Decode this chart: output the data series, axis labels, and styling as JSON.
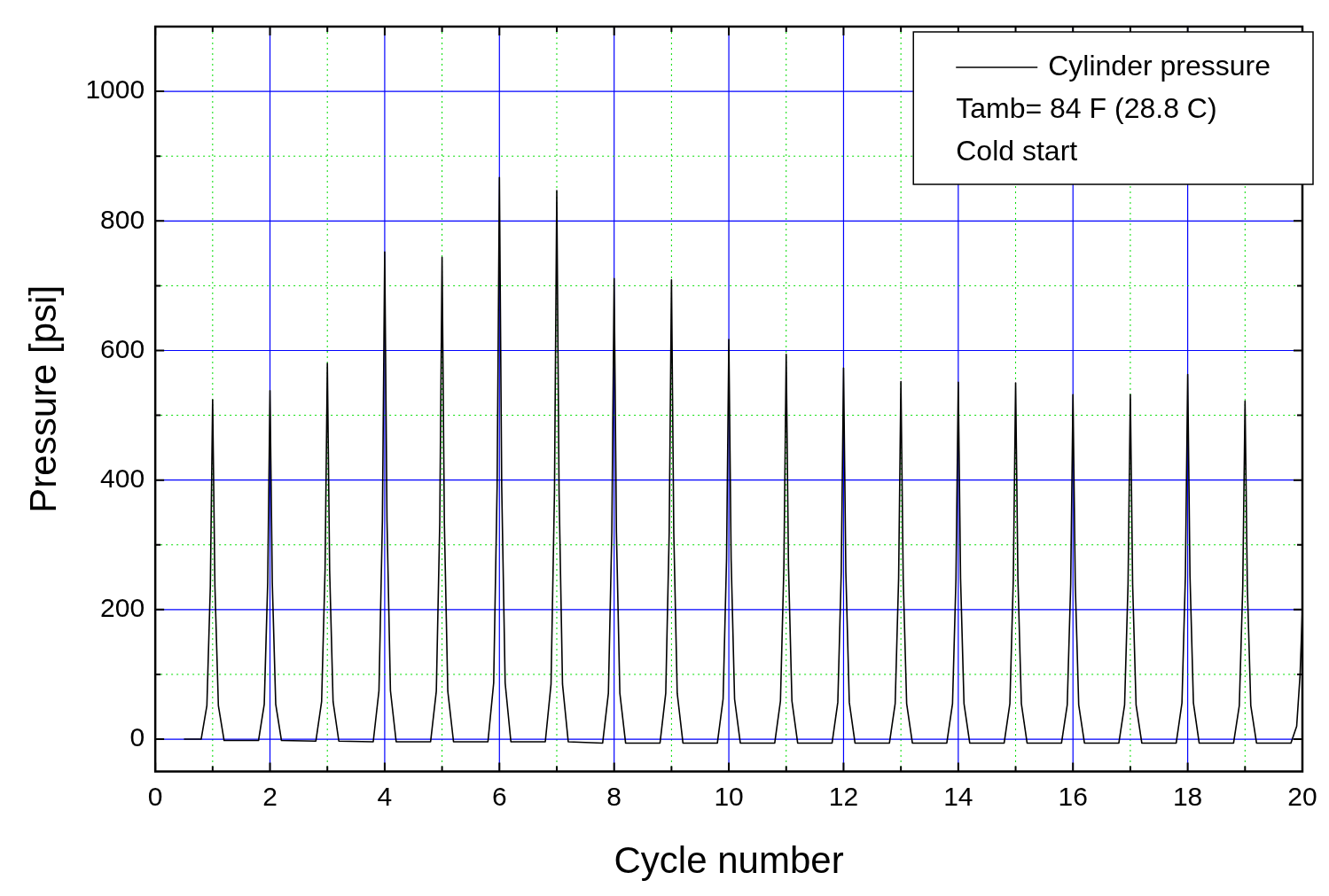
{
  "chart_data": {
    "type": "line",
    "xlabel": "Cycle number",
    "ylabel": "Pressure [psi]",
    "x": [
      0.5,
      0.8,
      0.9,
      0.96,
      1,
      1.04,
      1.1,
      1.2,
      1.8,
      1.9,
      1.96,
      2,
      2.04,
      2.1,
      2.2,
      2.8,
      2.9,
      2.96,
      3,
      3.04,
      3.1,
      3.2,
      3.8,
      3.9,
      3.96,
      4,
      4.04,
      4.1,
      4.2,
      4.8,
      4.9,
      4.96,
      5,
      5.04,
      5.1,
      5.2,
      5.8,
      5.9,
      5.96,
      6,
      6.04,
      6.1,
      6.2,
      6.8,
      6.9,
      6.96,
      7,
      7.04,
      7.1,
      7.2,
      7.8,
      7.9,
      7.96,
      8,
      8.04,
      8.1,
      8.2,
      8.8,
      8.9,
      8.96,
      9,
      9.04,
      9.1,
      9.2,
      9.8,
      9.9,
      9.96,
      10,
      10.04,
      10.1,
      10.2,
      10.8,
      10.9,
      10.96,
      11,
      11.04,
      11.1,
      11.2,
      11.8,
      11.9,
      11.96,
      12,
      12.04,
      12.1,
      12.2,
      12.8,
      12.9,
      12.96,
      13,
      13.04,
      13.1,
      13.2,
      13.8,
      13.9,
      13.96,
      14,
      14.04,
      14.1,
      14.2,
      14.8,
      14.9,
      14.96,
      15,
      15.04,
      15.1,
      15.2,
      15.8,
      15.9,
      15.96,
      16,
      16.04,
      16.1,
      16.2,
      16.8,
      16.9,
      16.96,
      17,
      17.04,
      17.1,
      17.2,
      17.8,
      17.9,
      17.96,
      18,
      18.04,
      18.1,
      18.2,
      18.8,
      18.9,
      18.96,
      19,
      19.04,
      19.1,
      19.2,
      19.8,
      19.9,
      19.96,
      20
    ],
    "series": [
      {
        "name": "Cylinder pressure",
        "color": "#000000",
        "values": [
          0,
          0,
          52,
          236,
          524,
          236,
          52,
          -2,
          -2,
          54,
          242,
          538,
          242,
          54,
          -2,
          -3,
          58,
          261,
          580,
          261,
          58,
          -3,
          -4,
          75,
          338,
          752,
          338,
          75,
          -4,
          -4,
          74,
          335,
          744,
          335,
          74,
          -4,
          -4,
          87,
          390,
          867,
          390,
          87,
          -4,
          -4,
          85,
          381,
          847,
          381,
          85,
          -4,
          -6,
          71,
          320,
          711,
          320,
          71,
          -6,
          -6,
          71,
          319,
          709,
          319,
          71,
          -6,
          -6,
          62,
          278,
          617,
          278,
          62,
          -6,
          -6,
          59,
          267,
          594,
          267,
          59,
          -6,
          -6,
          57,
          258,
          573,
          258,
          57,
          -6,
          -6,
          55,
          248,
          552,
          248,
          55,
          -6,
          -6,
          55,
          248,
          551,
          248,
          55,
          -6,
          -6,
          55,
          248,
          550,
          248,
          55,
          -6,
          -6,
          53,
          239,
          532,
          239,
          53,
          -6,
          -6,
          53,
          239,
          532,
          239,
          53,
          -6,
          -6,
          56,
          253,
          563,
          253,
          56,
          -6,
          -6,
          52,
          235,
          522,
          235,
          52,
          -6,
          -6,
          20,
          100,
          200
        ]
      }
    ],
    "xlim": [
      0,
      20
    ],
    "xticks": [
      0,
      {
        "value": 1,
        "label": null
      },
      2,
      {
        "value": 3,
        "label": null
      },
      4,
      {
        "value": 5,
        "label": null
      },
      6,
      {
        "value": 7,
        "label": null
      },
      8,
      {
        "value": 9,
        "label": null
      },
      10,
      {
        "value": 11,
        "label": null
      },
      12,
      {
        "value": 13,
        "label": null
      },
      14,
      {
        "value": 15,
        "label": null
      },
      16,
      {
        "value": 17,
        "label": null
      },
      18,
      {
        "value": 19,
        "label": null
      },
      20
    ],
    "ylim": [
      -50,
      1100
    ],
    "yticks": [
      0,
      {
        "value": 100,
        "label": null
      },
      200,
      {
        "value": 300,
        "label": null
      },
      400,
      {
        "value": 500,
        "label": null
      },
      600,
      {
        "value": 700,
        "label": null
      },
      800,
      {
        "value": 900,
        "label": null
      },
      1000
    ],
    "annotations": [
      "Tamb= 84 F (28.8 C)",
      "Cold start"
    ],
    "grid": true,
    "legend": "top right",
    "marker": "none",
    "line_style": "solid"
  }
}
